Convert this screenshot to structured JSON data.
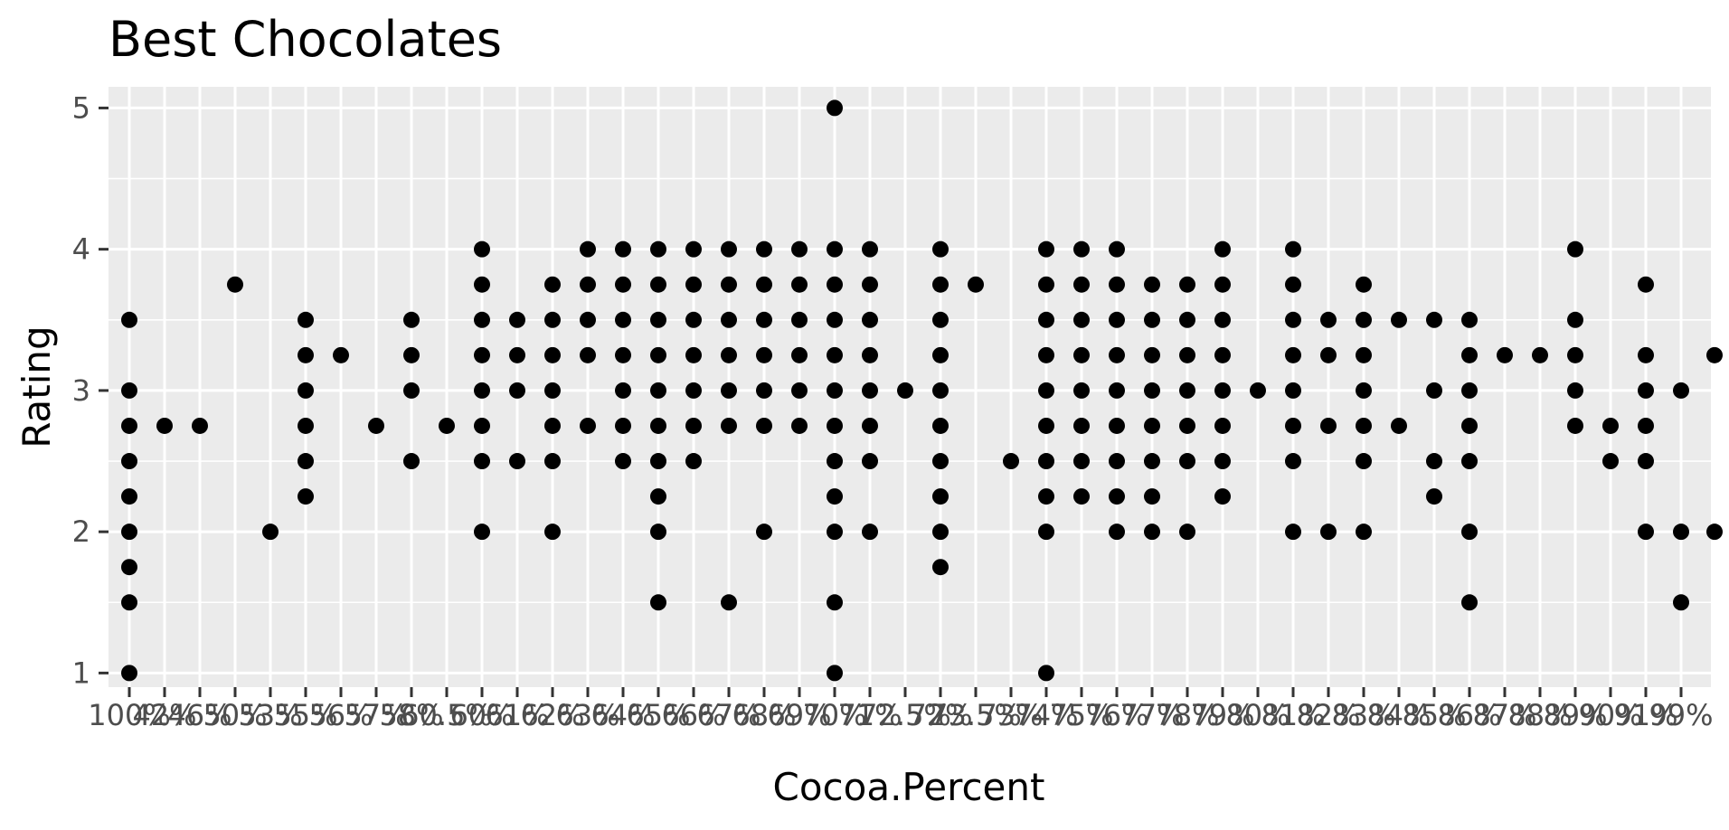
{
  "chart_data": {
    "type": "scatter",
    "title": "Best Chocolates",
    "xlabel": "Cocoa.Percent",
    "ylabel": "Rating",
    "x_axis_kind": "categorical",
    "categories": [
      "100%",
      "42%",
      "46%",
      "50%",
      "53%",
      "55%",
      "56%",
      "57%",
      "58%",
      "60.5%",
      "60%",
      "61%",
      "62%",
      "63%",
      "64%",
      "65%",
      "66%",
      "67%",
      "68%",
      "69%",
      "70%",
      "71%",
      "72.5%",
      "72%",
      "73.5%",
      "73%",
      "74%",
      "75%",
      "76%",
      "77%",
      "78%",
      "79%",
      "80%",
      "81%",
      "82%",
      "83%",
      "84%",
      "85%",
      "86%",
      "87%",
      "88%",
      "89%",
      "90%",
      "91%",
      "99%"
    ],
    "ylim": [
      0.9,
      5.15
    ],
    "y_ticks": [
      1,
      2,
      3,
      4,
      5
    ],
    "grid": true,
    "legend": "none",
    "colors": {
      "panel": "#EBEBEB",
      "grid": "#FFFFFF",
      "point": "#000000",
      "tick": "#333333",
      "tick_label": "#4D4D4D"
    },
    "points_by_category": [
      [
        3.5,
        3,
        2.75,
        2.5,
        2.25,
        2,
        1.75,
        1.5,
        1
      ],
      [
        2.75
      ],
      [
        2.75
      ],
      [
        3.75
      ],
      [
        2
      ],
      [
        3.5,
        3.25,
        3,
        2.75,
        2.5,
        2.25
      ],
      [
        3.25
      ],
      [
        2.75
      ],
      [
        3.5,
        3.25,
        3,
        2.5
      ],
      [
        2.75
      ],
      [
        4,
        3.75,
        3.5,
        3.25,
        3,
        2.75,
        2.5,
        2
      ],
      [
        3.5,
        3.25,
        3,
        2.5
      ],
      [
        3.75,
        3.5,
        3.25,
        3,
        2.75,
        2.5,
        2
      ],
      [
        4,
        3.75,
        3.5,
        3.25,
        2.75
      ],
      [
        4,
        3.75,
        3.5,
        3.25,
        3,
        2.75,
        2.5
      ],
      [
        4,
        3.75,
        3.5,
        3.25,
        3,
        2.75,
        2.5,
        2.25,
        2,
        1.5
      ],
      [
        4,
        3.75,
        3.5,
        3.25,
        3,
        2.75,
        2.5
      ],
      [
        4,
        3.75,
        3.5,
        3.25,
        3,
        2.75,
        1.5
      ],
      [
        4,
        3.75,
        3.5,
        3.25,
        3,
        2.75,
        2
      ],
      [
        4,
        3.75,
        3.5,
        3.25,
        3,
        2.75
      ],
      [
        5,
        4,
        3.75,
        3.5,
        3.25,
        3,
        2.75,
        2.5,
        2.25,
        2,
        1.5,
        1
      ],
      [
        4,
        3.75,
        3.5,
        3.25,
        3,
        2.75,
        2.5,
        2
      ],
      [
        3
      ],
      [
        4,
        3.75,
        3.5,
        3.25,
        3,
        2.75,
        2.5,
        2.25,
        2,
        1.75
      ],
      [
        3.75
      ],
      [
        2.5
      ],
      [
        4,
        3.75,
        3.5,
        3.25,
        3,
        2.75,
        2.5,
        2.25,
        2,
        1
      ],
      [
        4,
        3.75,
        3.5,
        3.25,
        3,
        2.75,
        2.5,
        2.25
      ],
      [
        4,
        3.75,
        3.5,
        3.25,
        3,
        2.75,
        2.5,
        2.25,
        2
      ],
      [
        3.75,
        3.5,
        3.25,
        3,
        2.75,
        2.5,
        2.25,
        2
      ],
      [
        3.75,
        3.5,
        3.25,
        3,
        2.75,
        2.5,
        2
      ],
      [
        4,
        3.75,
        3.5,
        3.25,
        3,
        2.75,
        2.5,
        2.25
      ],
      [
        3
      ],
      [
        4,
        3.75,
        3.5,
        3.25,
        3,
        2.75,
        2.5,
        2
      ],
      [
        3.5,
        3.25,
        2.75,
        2
      ],
      [
        3.75,
        3.5,
        3.25,
        3,
        2.75,
        2.5,
        2
      ],
      [
        3.5,
        2.75
      ],
      [
        3.5,
        3,
        2.5,
        2.25
      ],
      [
        3.5,
        3.25,
        3,
        2.75,
        2.5,
        2,
        1.5
      ],
      [
        3.25
      ],
      [
        3.25
      ],
      [
        4,
        3.5,
        3.25,
        3,
        2.75
      ],
      [
        2.75,
        2.5
      ],
      [
        3.75,
        3.25,
        3,
        2.75,
        2.5,
        2
      ],
      [
        3,
        2,
        1.5
      ]
    ],
    "extra_last_category_points": [
      3.25,
      2
    ]
  }
}
